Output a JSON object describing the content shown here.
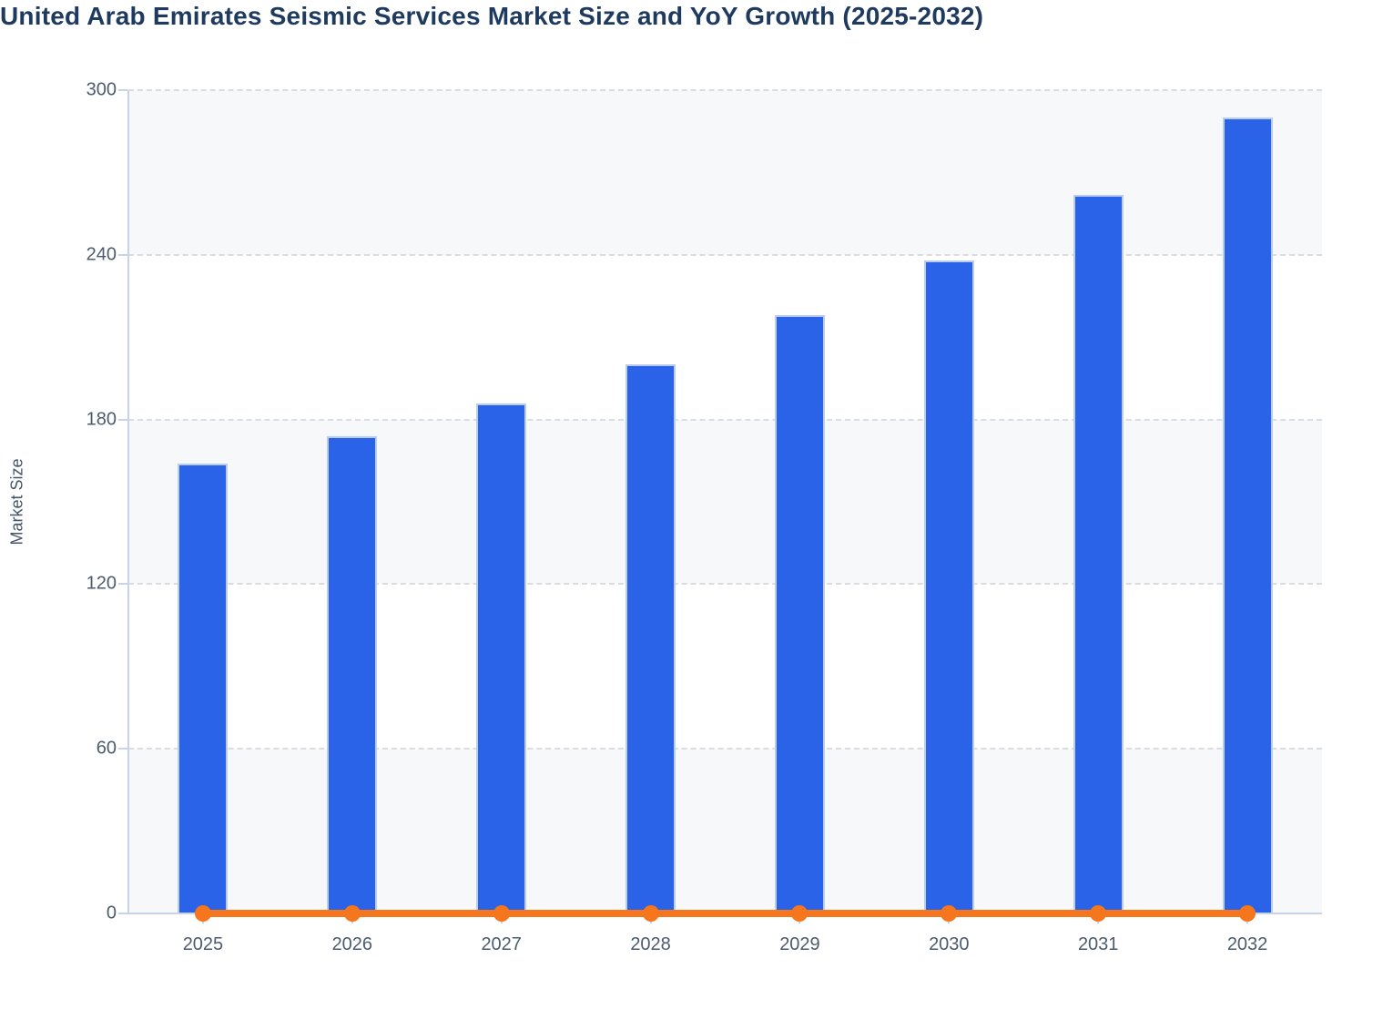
{
  "title": "United Arab Emirates Seismic Services Market Size and YoY Growth (2025-2032)",
  "colors": {
    "bar_fill": "#2b63e8",
    "bar_stroke": "#b9ccf2",
    "line": "#f5761c",
    "title_text": "#1e3a5f",
    "axis_title_text": "#44546a",
    "tick_label_text": "#4d5b6e",
    "axis_line": "#c9d3e8",
    "gridline": "#d9dce1",
    "plot_band": "#f6f8fa",
    "background": "#ffffff"
  },
  "chart_data": {
    "type": "bar",
    "title": "United Arab Emirates Seismic Services Market Size and YoY Growth (2025-2032)",
    "categories": [
      "2025",
      "2026",
      "2027",
      "2028",
      "2029",
      "2030",
      "2031",
      "2032"
    ],
    "series": [
      {
        "name": "Market Size",
        "type": "bar",
        "values": [
          164,
          174,
          186,
          200,
          218,
          238,
          262,
          290
        ]
      },
      {
        "name": "YoY Growth",
        "type": "line",
        "values": [
          0,
          0,
          0,
          0,
          0,
          0,
          0,
          0
        ],
        "note": "orange line with round markers rendered flat along the zero baseline"
      }
    ],
    "xlabel": "",
    "ylabel": "Market Size",
    "ylim": [
      0,
      300
    ],
    "yticks": [
      0,
      60,
      120,
      180,
      240,
      300
    ],
    "ytick_labels": [
      "0",
      "60",
      "120",
      "180",
      "240",
      "300"
    ],
    "grid": "horizontal dashed gridlines at each y tick",
    "plot_background": "alternating horizontal bands (shaded at 0-60, 120-180, 240-300)",
    "legend": "none"
  }
}
